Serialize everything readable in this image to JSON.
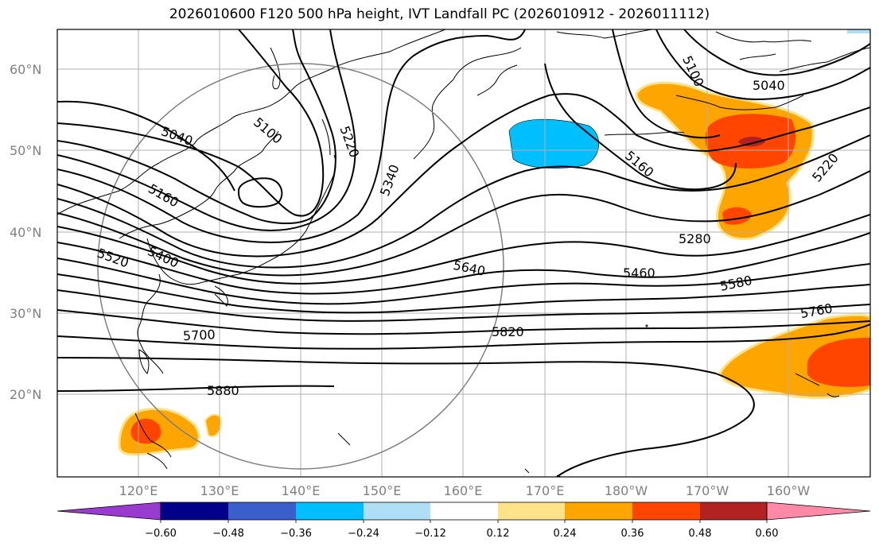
{
  "title": "2026010600 F120 500 hPa height, IVT Landfall PC (2026010912 - 2026011112)",
  "map": {
    "lat_labels": [
      "60°N",
      "50°N",
      "40°N",
      "30°N",
      "20°N"
    ],
    "lon_labels": [
      "120°E",
      "130°E",
      "140°E",
      "150°E",
      "160°E",
      "170°E",
      "180°W",
      "170°W",
      "160°W"
    ],
    "contour_labels": [
      "5040",
      "5100",
      "5220",
      "5340",
      "5160",
      "5400",
      "5520",
      "5640",
      "5460",
      "5580",
      "5700",
      "5820",
      "5760",
      "5880",
      "5280",
      "5100",
      "5160",
      "5040",
      "5220"
    ]
  },
  "colorbar": {
    "ticks": [
      "−0.60",
      "−0.48",
      "−0.36",
      "−0.24",
      "−0.12",
      "0.12",
      "0.24",
      "0.36",
      "0.48",
      "0.60"
    ],
    "colors": [
      "#9a3bd0",
      "#00008b",
      "#3a5fcd",
      "#00bfff",
      "#aedff7",
      "#ffffff",
      "#ffe38a",
      "#ffa500",
      "#ff4500",
      "#b22222",
      "#ff89a7"
    ]
  }
}
